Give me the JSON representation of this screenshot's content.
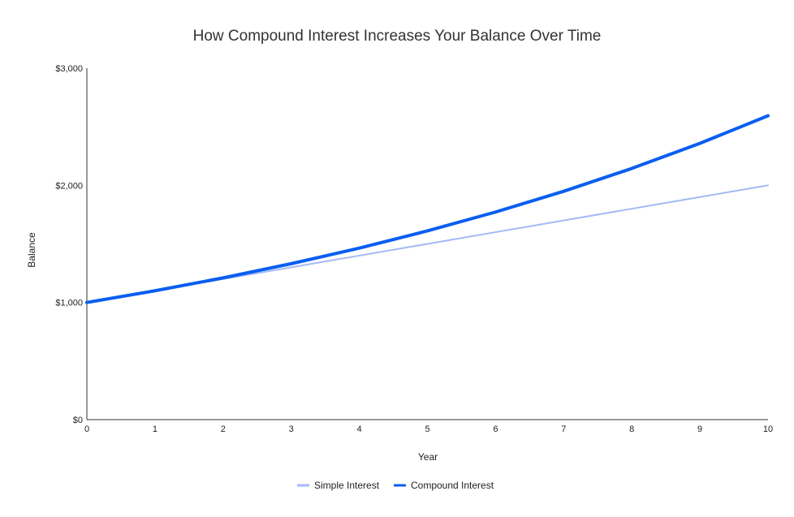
{
  "chart_data": {
    "type": "line",
    "title": "How Compound Interest Increases Your Balance Over Time",
    "xlabel": "Year",
    "ylabel": "Balance",
    "x": [
      0,
      1,
      2,
      3,
      4,
      5,
      6,
      7,
      8,
      9,
      10
    ],
    "x_tick_labels": [
      "0",
      "1",
      "2",
      "3",
      "4",
      "5",
      "6",
      "7",
      "8",
      "9",
      "10"
    ],
    "xlim": [
      0,
      10
    ],
    "ylim": [
      0,
      3000
    ],
    "y_ticks": [
      0,
      1000,
      2000,
      3000
    ],
    "y_tick_labels": [
      "$0",
      "$1,000",
      "$2,000",
      "$3,000"
    ],
    "grid": false,
    "legend_position": "bottom",
    "series": [
      {
        "name": "Simple Interest",
        "color": "#a4b9f5",
        "values": [
          1000,
          1100,
          1200,
          1300,
          1400,
          1500,
          1600,
          1700,
          1800,
          1900,
          2000
        ]
      },
      {
        "name": "Compound Interest",
        "color": "#0a5ef0",
        "values": [
          1000,
          1100,
          1210,
          1331,
          1464,
          1611,
          1772,
          1949,
          2144,
          2358,
          2594
        ]
      }
    ]
  }
}
